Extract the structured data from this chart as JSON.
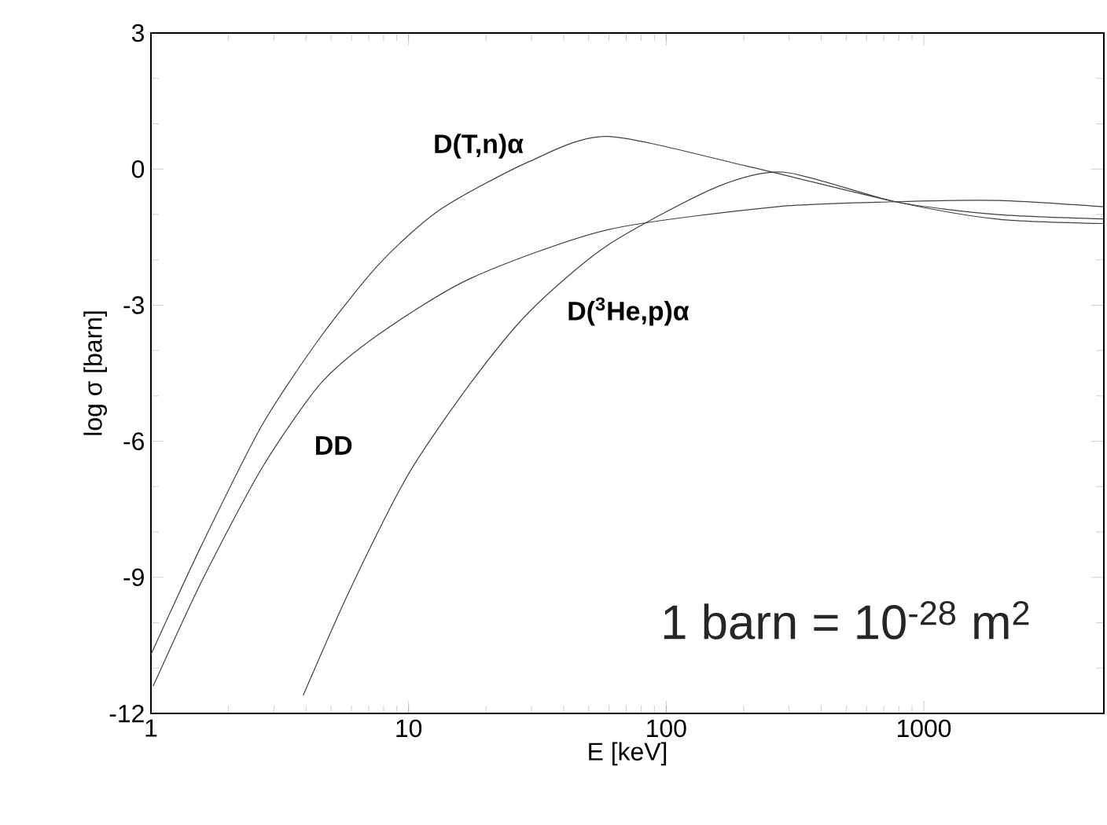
{
  "chart_data": {
    "type": "line",
    "xlabel": "E   [keV]",
    "ylabel": "log  σ  [barn]",
    "log": "x",
    "xlim": [
      1,
      5000
    ],
    "ylim": [
      -12,
      3
    ],
    "xticks": [
      1,
      10,
      100,
      1000
    ],
    "yticks": [
      -12,
      -9,
      -6,
      -3,
      0,
      3
    ],
    "grid": false,
    "marker": "none",
    "line_style": "solid",
    "annotations": [
      "1 barn = 10$^{-28}$ m$^{2}$"
    ],
    "series": [
      {
        "name": "D(T,n)α",
        "color": "#404040",
        "x": [
          1,
          1.57,
          2.69,
          4.57,
          7.76,
          13.2,
          29.5,
          58.9,
          204,
          776,
          1905,
          5000
        ],
        "values": [
          -10.7,
          -8.3,
          -5.66,
          -3.69,
          -2.07,
          -0.9,
          0.17,
          0.72,
          0.07,
          -0.72,
          -1.1,
          -1.2
        ]
      },
      {
        "name": "DD",
        "color": "#404040",
        "x": [
          1.02,
          1.57,
          2.69,
          4.57,
          7.76,
          17.4,
          58.9,
          270,
          776,
          1905,
          5000
        ],
        "values": [
          -11.4,
          -9.1,
          -6.6,
          -4.72,
          -3.62,
          -2.41,
          -1.34,
          -0.83,
          -0.72,
          -0.69,
          -0.83
        ]
      },
      {
        "name": "D($^{3}$He,p)α",
        "color": "#404040",
        "x": [
          3.9,
          5.96,
          10,
          17.4,
          29.5,
          58.9,
          155,
          288,
          776,
          1905,
          5000
        ],
        "values": [
          -11.6,
          -9.24,
          -6.72,
          -4.72,
          -3.14,
          -1.69,
          -0.41,
          -0.07,
          -0.72,
          -1.0,
          -1.1
        ]
      }
    ]
  }
}
